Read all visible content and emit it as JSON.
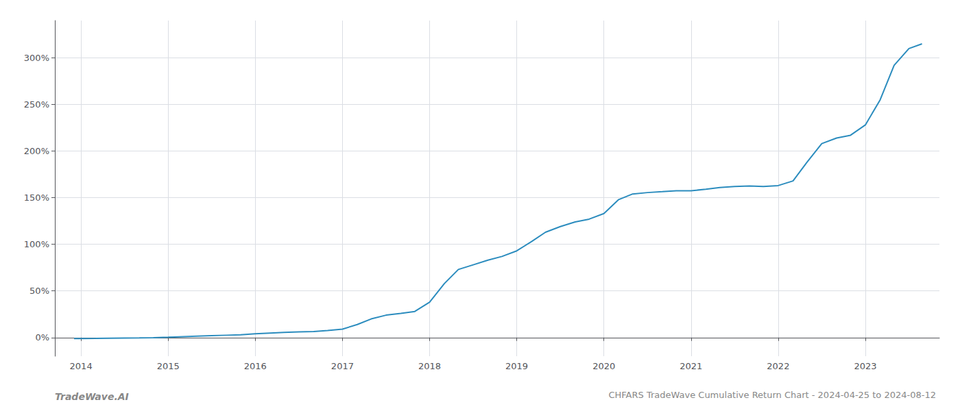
{
  "chart_data": {
    "type": "line",
    "title": "CHFARS TradeWave Cumulative Return Chart - 2024-04-25 to 2024-08-12",
    "annotations": [
      "TradeWave.AI"
    ],
    "color": "#2b8cbe",
    "x": [
      2013.92,
      2014.0,
      2014.17,
      2014.33,
      2014.5,
      2014.67,
      2014.83,
      2015.0,
      2015.17,
      2015.33,
      2015.5,
      2015.67,
      2015.83,
      2016.0,
      2016.17,
      2016.33,
      2016.5,
      2016.67,
      2016.83,
      2017.0,
      2017.17,
      2017.33,
      2017.5,
      2017.67,
      2017.83,
      2018.0,
      2018.17,
      2018.33,
      2018.5,
      2018.67,
      2018.83,
      2019.0,
      2019.17,
      2019.33,
      2019.5,
      2019.67,
      2019.83,
      2020.0,
      2020.17,
      2020.33,
      2020.5,
      2020.67,
      2020.83,
      2021.0,
      2021.17,
      2021.33,
      2021.5,
      2021.67,
      2021.83,
      2022.0,
      2022.17,
      2022.33,
      2022.5,
      2022.67,
      2022.83,
      2023.0,
      2023.17,
      2023.33,
      2023.5,
      2023.65
    ],
    "values": [
      -1.0,
      -1.0,
      -0.9,
      -0.7,
      -0.5,
      -0.4,
      -0.2,
      0.3,
      1.0,
      1.5,
      2.0,
      2.5,
      3.0,
      4.0,
      4.8,
      5.5,
      6.0,
      6.5,
      7.5,
      9.0,
      14.0,
      20.0,
      24.0,
      26.0,
      28.0,
      38.0,
      58.0,
      73.0,
      78.0,
      83.0,
      87.0,
      93.0,
      103.0,
      113.0,
      119.0,
      124.0,
      127.0,
      133.0,
      148.0,
      154.0,
      155.5,
      156.5,
      157.5,
      157.5,
      159.0,
      161.0,
      162.0,
      162.5,
      162.0,
      163.0,
      168.0,
      188.0,
      208.0,
      214.0,
      217.0,
      228.0,
      255.0,
      292.0,
      310.0,
      315.0
    ],
    "xlim": [
      2013.7,
      2023.85
    ],
    "ylim": [
      -20,
      340
    ],
    "xticks": [
      2014,
      2015,
      2016,
      2017,
      2018,
      2019,
      2020,
      2021,
      2022,
      2023
    ],
    "yticks": [
      {
        "value": 0,
        "label": "0%"
      },
      {
        "value": 50,
        "label": "50%"
      },
      {
        "value": 100,
        "label": "100%"
      },
      {
        "value": 150,
        "label": "150%"
      },
      {
        "value": 200,
        "label": "200%"
      },
      {
        "value": 250,
        "label": "250%"
      },
      {
        "value": 300,
        "label": "300%"
      }
    ],
    "grid": true
  }
}
